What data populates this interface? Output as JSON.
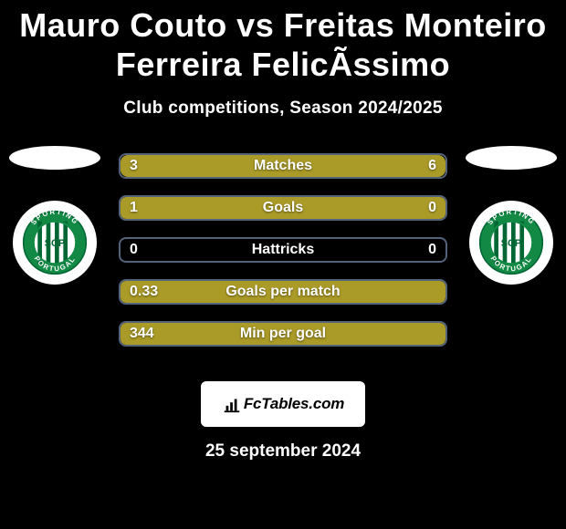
{
  "title": "Mauro Couto vs Freitas Monteiro Ferreira FelicÃssimo",
  "subtitle": "Club competitions, Season 2024/2025",
  "date": "25 september 2024",
  "fctables_label": "FcTables.com",
  "colors": {
    "background": "#000000",
    "bar_border": "#54637a",
    "bar_left_fill": "#aa9a27",
    "bar_right_fill": "#aa9a27",
    "text": "#ffffff"
  },
  "stats": [
    {
      "label": "Matches",
      "left_value": "3",
      "right_value": "6",
      "left_pct": 33.3,
      "right_pct": 66.7
    },
    {
      "label": "Goals",
      "left_value": "1",
      "right_value": "0",
      "left_pct": 100,
      "right_pct": 0
    },
    {
      "label": "Hattricks",
      "left_value": "0",
      "right_value": "0",
      "left_pct": 0,
      "right_pct": 0
    },
    {
      "label": "Goals per match",
      "left_value": "0.33",
      "right_value": "",
      "left_pct": 100,
      "right_pct": 0
    },
    {
      "label": "Min per goal",
      "left_value": "344",
      "right_value": "",
      "left_pct": 100,
      "right_pct": 0
    }
  ],
  "club": {
    "name": "Sporting CP",
    "stripe_color": "#006633",
    "ring_color": "#128a45",
    "text_color": "#ffffff",
    "initials": "SCP",
    "top_word": "SPORTING",
    "bottom_word": "PORTUGAL"
  }
}
